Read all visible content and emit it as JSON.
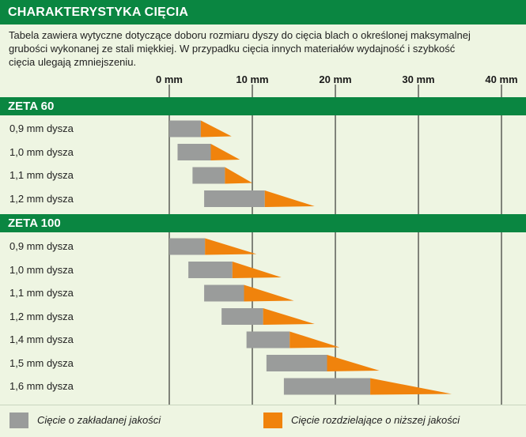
{
  "title": "CHARAKTERYSTYKA CIĘCIA",
  "description": [
    "Tabela zawiera wytyczne dotyczące doboru rozmiaru dyszy do cięcia blach o określonej maksymalnej",
    "grubości wykonanej ze stali miękkiej. W przypadku cięcia innych materiałów wydajność i szybkość",
    "cięcia ulegają zmniejszeniu."
  ],
  "colors": {
    "quality": "#9a9c9b",
    "severance": "#f0830c",
    "header_green": "#0a8641"
  },
  "legend": {
    "quality": "Cięcie o zakładanej jakości",
    "severance": "Cięcie rozdzielające o niższej jakości"
  },
  "chart_data": {
    "type": "bar",
    "orientation": "horizontal",
    "x_ticks": [
      "0 mm",
      "10 mm",
      "20 mm",
      "30 mm",
      "40 mm"
    ],
    "x_tick_values": [
      0,
      10,
      20,
      30,
      40
    ],
    "xlim": [
      0,
      40
    ],
    "unit": "mm",
    "series": [
      {
        "name": "Cięcie o zakładanej jakości",
        "key": "quality"
      },
      {
        "name": "Cięcie rozdzielające o niższej jakości",
        "key": "severance"
      }
    ],
    "groups": [
      {
        "name": "ZETA 60",
        "rows": [
          {
            "label": "0,9 mm dysza",
            "quality": [
              0,
              3.8
            ],
            "severance": [
              3.8,
              7.5
            ]
          },
          {
            "label": "1,0 mm dysza",
            "quality": [
              1,
              5
            ],
            "severance": [
              5,
              8.5
            ]
          },
          {
            "label": "1,1 mm dysza",
            "quality": [
              2.8,
              6.7
            ],
            "severance": [
              6.7,
              10
            ]
          },
          {
            "label": "1,2 mm dysza",
            "quality": [
              4.2,
              11.5
            ],
            "severance": [
              11.5,
              17.5
            ]
          }
        ]
      },
      {
        "name": "ZETA 100",
        "rows": [
          {
            "label": "0,9 mm dysza",
            "quality": [
              0,
              4.3
            ],
            "severance": [
              4.3,
              10.5
            ]
          },
          {
            "label": "1,0 mm dysza",
            "quality": [
              2.3,
              7.6
            ],
            "severance": [
              7.6,
              13.5
            ]
          },
          {
            "label": "1,1 mm dysza",
            "quality": [
              4.2,
              9
            ],
            "severance": [
              9,
              15
            ]
          },
          {
            "label": "1,2 mm dysza",
            "quality": [
              6.3,
              11.3
            ],
            "severance": [
              11.3,
              17.5
            ]
          },
          {
            "label": "1,4 mm dysza",
            "quality": [
              9.3,
              14.5
            ],
            "severance": [
              14.5,
              20.5
            ]
          },
          {
            "label": "1,5 mm dysza",
            "quality": [
              11.7,
              19
            ],
            "severance": [
              19,
              25.3
            ]
          },
          {
            "label": "1,6 mm dysza",
            "quality": [
              13.8,
              24.2
            ],
            "severance": [
              24.2,
              34
            ]
          }
        ]
      }
    ]
  }
}
